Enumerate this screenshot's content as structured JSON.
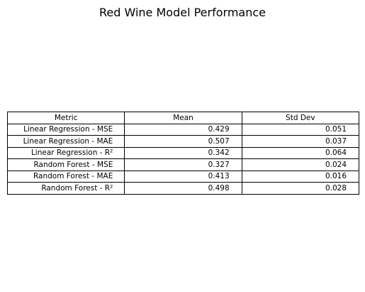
{
  "chart_data": {
    "type": "table",
    "title": "Red Wine Model Performance",
    "columns": [
      "Metric",
      "Mean",
      "Std Dev"
    ],
    "rows": [
      {
        "metric": "Linear Regression - MSE",
        "mean": "0.429",
        "std": "0.051"
      },
      {
        "metric": "Linear Regression - MAE",
        "mean": "0.507",
        "std": "0.037"
      },
      {
        "metric": "Linear Regression - R²",
        "mean": "0.342",
        "std": "0.064"
      },
      {
        "metric": "Random Forest - MSE",
        "mean": "0.327",
        "std": "0.024"
      },
      {
        "metric": "Random Forest - MAE",
        "mean": "0.413",
        "std": "0.016"
      },
      {
        "metric": "Random Forest - R²",
        "mean": "0.498",
        "std": "0.028"
      }
    ]
  }
}
